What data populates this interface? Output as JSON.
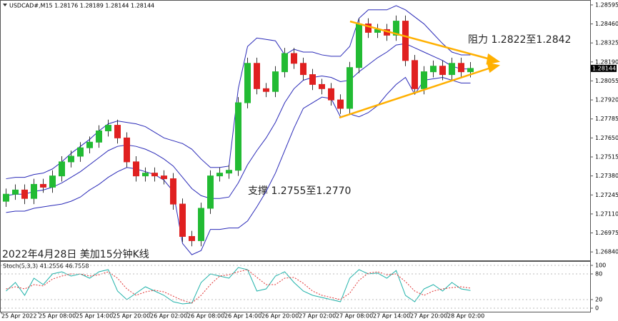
{
  "chart_data": [
    {
      "type": "candlestick",
      "title": "USDCAD#,M15  1.28176 1.28189 1.28144 1.28144",
      "annotations": [
        "阻力 1.2822至1.2842",
        "支撑 1.2755至1.2770",
        "2022年4月28日 美加15分钟K线"
      ],
      "categories": [
        "25 Apr 2022",
        null,
        null,
        null,
        "25 Apr 08:00",
        null,
        null,
        null,
        "25 Apr 14:00",
        null,
        null,
        null,
        "25 Apr 20:00",
        null,
        null,
        null,
        "26 Apr 02:00",
        null,
        null,
        null,
        "26 Apr 08:00",
        null,
        null,
        null,
        "26 Apr 14:00",
        null,
        null,
        null,
        "26 Apr 20:00",
        null,
        null,
        null,
        "27 Apr 02:00",
        null,
        null,
        null,
        "27 Apr 08:00",
        null,
        null,
        null,
        "27 Apr 14:00",
        null,
        null,
        null,
        "27 Apr 20:00",
        null,
        null,
        null,
        "28 Apr 02:00",
        null,
        null
      ],
      "open": [
        1.272,
        1.2725,
        1.2728,
        1.2722,
        1.2732,
        1.273,
        1.2738,
        1.2748,
        1.2752,
        1.2758,
        1.2762,
        1.277,
        1.2774,
        1.2765,
        1.2748,
        1.2738,
        1.274,
        1.2738,
        1.2736,
        1.2718,
        1.2695,
        1.2692,
        1.2715,
        1.2738,
        1.274,
        1.2742,
        1.279,
        1.2818,
        1.28,
        1.2798,
        1.2812,
        1.2825,
        1.2818,
        1.281,
        1.2803,
        1.28,
        1.2792,
        1.2786,
        1.2815,
        1.2846,
        1.284,
        1.2842,
        1.2838,
        1.2848,
        1.282,
        1.28,
        1.2812,
        1.2816,
        1.281,
        1.2818,
        1.2812
      ],
      "high": [
        1.2729,
        1.2732,
        1.2732,
        1.2736,
        1.2736,
        1.2742,
        1.2752,
        1.2756,
        1.2762,
        1.2766,
        1.2774,
        1.2778,
        1.2778,
        1.2769,
        1.2752,
        1.2744,
        1.2744,
        1.2742,
        1.274,
        1.2722,
        1.2699,
        1.2719,
        1.2742,
        1.2744,
        1.2746,
        1.2794,
        1.2822,
        1.2822,
        1.2804,
        1.2816,
        1.2829,
        1.2829,
        1.2822,
        1.2814,
        1.2807,
        1.2804,
        1.2796,
        1.2819,
        1.285,
        1.285,
        1.2846,
        1.2846,
        1.2852,
        1.2852,
        1.2824,
        1.2816,
        1.282,
        1.282,
        1.2822,
        1.2822,
        1.28189
      ],
      "low": [
        1.2716,
        1.2721,
        1.2718,
        1.2718,
        1.2726,
        1.2726,
        1.2734,
        1.2744,
        1.2748,
        1.2754,
        1.2758,
        1.2766,
        1.2761,
        1.2744,
        1.2734,
        1.2734,
        1.2734,
        1.2732,
        1.2714,
        1.2691,
        1.2688,
        1.2688,
        1.2711,
        1.2734,
        1.2736,
        1.2738,
        1.2786,
        1.2796,
        1.2794,
        1.2794,
        1.2808,
        1.2814,
        1.2806,
        1.2799,
        1.2796,
        1.2788,
        1.2782,
        1.2782,
        1.2811,
        1.2836,
        1.2836,
        1.2834,
        1.2834,
        1.2816,
        1.2796,
        1.2796,
        1.2808,
        1.2806,
        1.2806,
        1.2808,
        1.2808
      ],
      "close": [
        1.2725,
        1.2728,
        1.2722,
        1.2732,
        1.273,
        1.2738,
        1.2748,
        1.2752,
        1.2758,
        1.2762,
        1.277,
        1.2774,
        1.2765,
        1.2748,
        1.2738,
        1.274,
        1.2738,
        1.2736,
        1.2718,
        1.2695,
        1.2692,
        1.2715,
        1.2738,
        1.274,
        1.2742,
        1.279,
        1.2818,
        1.28,
        1.2798,
        1.2812,
        1.2825,
        1.2818,
        1.281,
        1.2803,
        1.28,
        1.2792,
        1.2786,
        1.2815,
        1.2846,
        1.284,
        1.2842,
        1.2838,
        1.2848,
        1.282,
        1.28,
        1.2812,
        1.2816,
        1.281,
        1.2818,
        1.2812,
        1.28144
      ],
      "up_color": "#22bb33",
      "down_color": "#e02020",
      "bollinger": {
        "color": "#2a2ab8",
        "upper": [
          1.2736,
          1.2737,
          1.2737,
          1.2739,
          1.274,
          1.2743,
          1.2748,
          1.2754,
          1.2759,
          1.2764,
          1.277,
          1.2775,
          1.2777,
          1.2776,
          1.2775,
          1.2773,
          1.2769,
          1.2765,
          1.2763,
          1.2761,
          1.2757,
          1.275,
          1.2744,
          1.2744,
          1.2745,
          1.28,
          1.283,
          1.2836,
          1.2835,
          1.2834,
          1.2824,
          1.2828,
          1.2826,
          1.2826,
          1.2824,
          1.2823,
          1.2823,
          1.283,
          1.285,
          1.2856,
          1.2856,
          1.2856,
          1.2859,
          1.2856,
          1.2851,
          1.2846,
          1.2839,
          1.2832,
          1.2826,
          1.2824,
          1.2824
        ],
        "middle": [
          1.2724,
          1.2725,
          1.2725,
          1.2727,
          1.2728,
          1.273,
          1.2733,
          1.2737,
          1.2741,
          1.2746,
          1.2751,
          1.2756,
          1.2759,
          1.276,
          1.2759,
          1.2757,
          1.2754,
          1.275,
          1.2745,
          1.2737,
          1.2729,
          1.2724,
          1.2722,
          1.2722,
          1.2723,
          1.2733,
          1.2746,
          1.2756,
          1.2765,
          1.2776,
          1.279,
          1.28,
          1.2806,
          1.2808,
          1.2809,
          1.2808,
          1.2805,
          1.2806,
          1.2812,
          1.2817,
          1.2822,
          1.2826,
          1.2831,
          1.2832,
          1.2829,
          1.2826,
          1.2823,
          1.282,
          1.2816,
          1.2814,
          1.2814
        ],
        "lower": [
          1.2712,
          1.2713,
          1.2713,
          1.2715,
          1.2716,
          1.2717,
          1.2718,
          1.272,
          1.2723,
          1.2728,
          1.2732,
          1.2737,
          1.2741,
          1.2744,
          1.2743,
          1.2741,
          1.2739,
          1.2735,
          1.2727,
          1.269,
          1.2682,
          1.2685,
          1.27,
          1.27,
          1.2701,
          1.2701,
          1.2706,
          1.2716,
          1.2727,
          1.274,
          1.2756,
          1.2772,
          1.2786,
          1.279,
          1.2794,
          1.2793,
          1.278,
          1.2782,
          1.278,
          1.2783,
          1.2788,
          1.2796,
          1.2803,
          1.2808,
          1.2796,
          1.2806,
          1.2807,
          1.2808,
          1.2806,
          1.2804,
          1.2804
        ]
      },
      "last_price": 1.28144,
      "ylim": [
        1.2678,
        1.2863
      ],
      "yticks": [
        1.28595,
        {
          "value": 1.2846,
          "label": "1.28460"
        },
        1.28325,
        {
          "value": 1.2819,
          "label": "1.28190"
        },
        1.28055,
        {
          "value": 1.2792,
          "label": "1.27920"
        },
        1.27785,
        {
          "value": 1.2765,
          "label": "1.27650"
        },
        1.27515,
        {
          "value": 1.2738,
          "label": "1.27380"
        },
        1.27245,
        {
          "value": 1.2711,
          "label": "1.27110"
        },
        1.26975,
        {
          "value": 1.2684,
          "label": "1.26840"
        }
      ]
    },
    {
      "type": "line",
      "title": "Stoch(5,3,3) 41.2556 46.7558",
      "series": [
        {
          "color": "#20b2aa",
          "values": [
            40,
            60,
            30,
            70,
            55,
            80,
            85,
            75,
            80,
            70,
            85,
            90,
            40,
            20,
            35,
            50,
            40,
            30,
            15,
            10,
            12,
            60,
            80,
            75,
            70,
            95,
            90,
            40,
            45,
            75,
            85,
            60,
            40,
            30,
            25,
            20,
            15,
            70,
            90,
            80,
            82,
            70,
            88,
            30,
            15,
            45,
            55,
            40,
            60,
            45,
            41.2556
          ]
        },
        {
          "color": "#e03030",
          "dashed": true,
          "values": [
            45,
            50,
            45,
            55,
            52,
            68,
            75,
            80,
            80,
            75,
            78,
            85,
            70,
            45,
            30,
            38,
            42,
            38,
            28,
            18,
            12,
            30,
            55,
            75,
            78,
            85,
            90,
            72,
            55,
            55,
            70,
            72,
            58,
            40,
            30,
            25,
            20,
            35,
            65,
            82,
            85,
            78,
            80,
            62,
            40,
            30,
            40,
            45,
            48,
            50,
            46.7558
          ]
        }
      ],
      "ylim": [
        0,
        100
      ],
      "yticks": [
        0,
        20,
        80,
        100
      ]
    }
  ]
}
